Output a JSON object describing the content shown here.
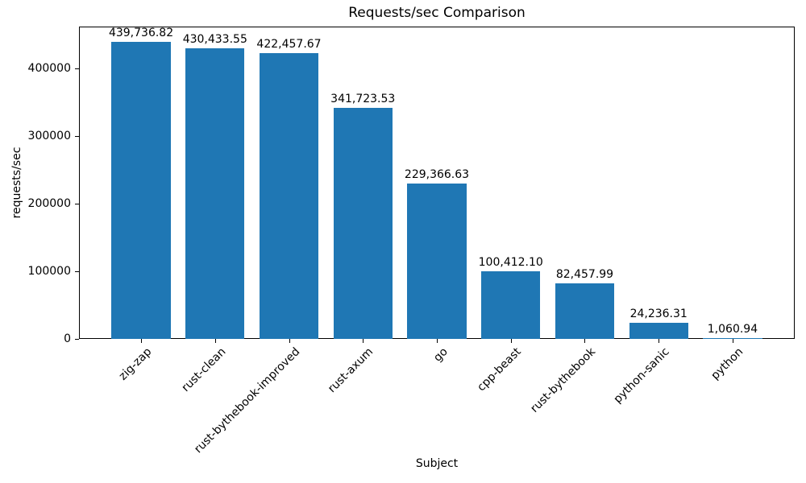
{
  "chart_data": {
    "type": "bar",
    "title": "Requests/sec Comparison",
    "xlabel": "Subject",
    "ylabel": "requests/sec",
    "categories": [
      "zig-zap",
      "rust-clean",
      "rust-bythebook-improved",
      "rust-axum",
      "go",
      "cpp-beast",
      "rust-bythebook",
      "python-sanic",
      "python"
    ],
    "values": [
      439736.82,
      430433.55,
      422457.67,
      341723.53,
      229366.63,
      100412.1,
      82457.99,
      24236.31,
      1060.94
    ],
    "value_labels": [
      "439,736.82",
      "430,433.55",
      "422,457.67",
      "341,723.53",
      "229,366.63",
      "100,412.10",
      "82,457.99",
      "24,236.31",
      "1,060.94"
    ],
    "ytick_values": [
      0,
      100000,
      200000,
      300000,
      400000
    ],
    "ytick_labels": [
      "0",
      "100000",
      "200000",
      "300000",
      "400000"
    ],
    "ylim": [
      0,
      462000
    ],
    "bar_color": "#1f77b4",
    "grid": false,
    "legend": null,
    "x_tick_rotation": 45
  }
}
